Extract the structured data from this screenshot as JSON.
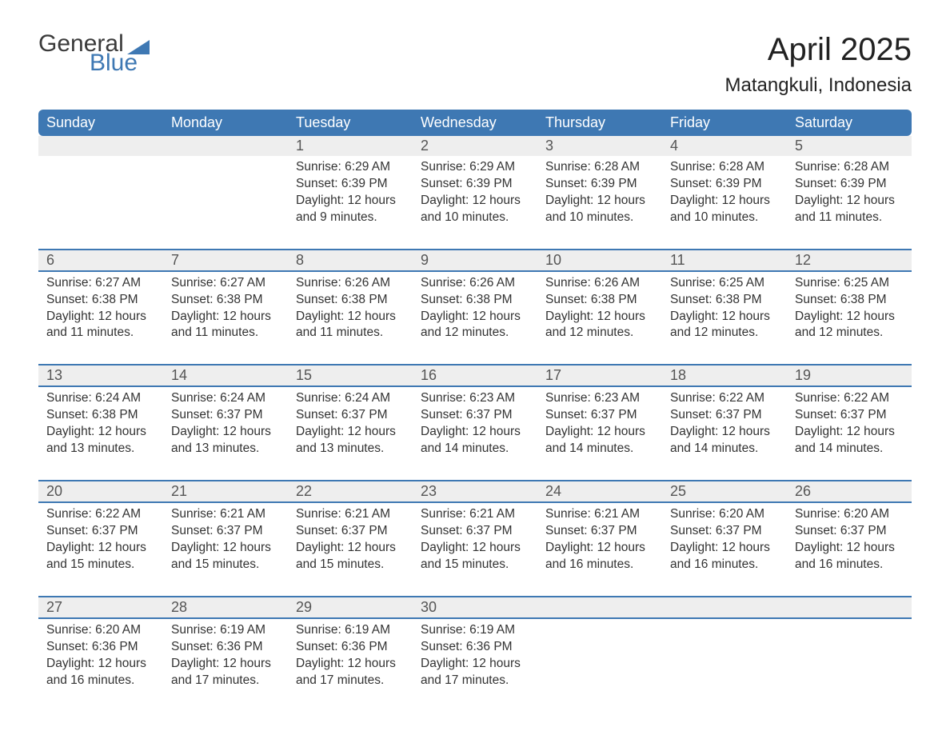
{
  "logo": {
    "word1": "General",
    "word2": "Blue",
    "brand_color": "#3e78b3",
    "text_color": "#3a3a3a"
  },
  "header": {
    "month_title": "April 2025",
    "location": "Matangkuli, Indonesia"
  },
  "colors": {
    "header_bg": "#3e78b3",
    "header_text": "#ffffff",
    "daynum_bg": "#eeeeee",
    "week_divider": "#3e78b3",
    "page_bg": "#ffffff",
    "body_text": "#333333"
  },
  "typography": {
    "month_title_fontsize": 40,
    "location_fontsize": 24,
    "weekday_fontsize": 18,
    "daynum_fontsize": 18,
    "detail_fontsize": 15.5,
    "font_family": "Segoe UI"
  },
  "calendar": {
    "type": "table",
    "columns": [
      "Sunday",
      "Monday",
      "Tuesday",
      "Wednesday",
      "Thursday",
      "Friday",
      "Saturday"
    ],
    "weeks": [
      [
        null,
        null,
        {
          "day": "1",
          "sunrise": "Sunrise: 6:29 AM",
          "sunset": "Sunset: 6:39 PM",
          "daylight1": "Daylight: 12 hours",
          "daylight2": "and 9 minutes."
        },
        {
          "day": "2",
          "sunrise": "Sunrise: 6:29 AM",
          "sunset": "Sunset: 6:39 PM",
          "daylight1": "Daylight: 12 hours",
          "daylight2": "and 10 minutes."
        },
        {
          "day": "3",
          "sunrise": "Sunrise: 6:28 AM",
          "sunset": "Sunset: 6:39 PM",
          "daylight1": "Daylight: 12 hours",
          "daylight2": "and 10 minutes."
        },
        {
          "day": "4",
          "sunrise": "Sunrise: 6:28 AM",
          "sunset": "Sunset: 6:39 PM",
          "daylight1": "Daylight: 12 hours",
          "daylight2": "and 10 minutes."
        },
        {
          "day": "5",
          "sunrise": "Sunrise: 6:28 AM",
          "sunset": "Sunset: 6:39 PM",
          "daylight1": "Daylight: 12 hours",
          "daylight2": "and 11 minutes."
        }
      ],
      [
        {
          "day": "6",
          "sunrise": "Sunrise: 6:27 AM",
          "sunset": "Sunset: 6:38 PM",
          "daylight1": "Daylight: 12 hours",
          "daylight2": "and 11 minutes."
        },
        {
          "day": "7",
          "sunrise": "Sunrise: 6:27 AM",
          "sunset": "Sunset: 6:38 PM",
          "daylight1": "Daylight: 12 hours",
          "daylight2": "and 11 minutes."
        },
        {
          "day": "8",
          "sunrise": "Sunrise: 6:26 AM",
          "sunset": "Sunset: 6:38 PM",
          "daylight1": "Daylight: 12 hours",
          "daylight2": "and 11 minutes."
        },
        {
          "day": "9",
          "sunrise": "Sunrise: 6:26 AM",
          "sunset": "Sunset: 6:38 PM",
          "daylight1": "Daylight: 12 hours",
          "daylight2": "and 12 minutes."
        },
        {
          "day": "10",
          "sunrise": "Sunrise: 6:26 AM",
          "sunset": "Sunset: 6:38 PM",
          "daylight1": "Daylight: 12 hours",
          "daylight2": "and 12 minutes."
        },
        {
          "day": "11",
          "sunrise": "Sunrise: 6:25 AM",
          "sunset": "Sunset: 6:38 PM",
          "daylight1": "Daylight: 12 hours",
          "daylight2": "and 12 minutes."
        },
        {
          "day": "12",
          "sunrise": "Sunrise: 6:25 AM",
          "sunset": "Sunset: 6:38 PM",
          "daylight1": "Daylight: 12 hours",
          "daylight2": "and 12 minutes."
        }
      ],
      [
        {
          "day": "13",
          "sunrise": "Sunrise: 6:24 AM",
          "sunset": "Sunset: 6:38 PM",
          "daylight1": "Daylight: 12 hours",
          "daylight2": "and 13 minutes."
        },
        {
          "day": "14",
          "sunrise": "Sunrise: 6:24 AM",
          "sunset": "Sunset: 6:37 PM",
          "daylight1": "Daylight: 12 hours",
          "daylight2": "and 13 minutes."
        },
        {
          "day": "15",
          "sunrise": "Sunrise: 6:24 AM",
          "sunset": "Sunset: 6:37 PM",
          "daylight1": "Daylight: 12 hours",
          "daylight2": "and 13 minutes."
        },
        {
          "day": "16",
          "sunrise": "Sunrise: 6:23 AM",
          "sunset": "Sunset: 6:37 PM",
          "daylight1": "Daylight: 12 hours",
          "daylight2": "and 14 minutes."
        },
        {
          "day": "17",
          "sunrise": "Sunrise: 6:23 AM",
          "sunset": "Sunset: 6:37 PM",
          "daylight1": "Daylight: 12 hours",
          "daylight2": "and 14 minutes."
        },
        {
          "day": "18",
          "sunrise": "Sunrise: 6:22 AM",
          "sunset": "Sunset: 6:37 PM",
          "daylight1": "Daylight: 12 hours",
          "daylight2": "and 14 minutes."
        },
        {
          "day": "19",
          "sunrise": "Sunrise: 6:22 AM",
          "sunset": "Sunset: 6:37 PM",
          "daylight1": "Daylight: 12 hours",
          "daylight2": "and 14 minutes."
        }
      ],
      [
        {
          "day": "20",
          "sunrise": "Sunrise: 6:22 AM",
          "sunset": "Sunset: 6:37 PM",
          "daylight1": "Daylight: 12 hours",
          "daylight2": "and 15 minutes."
        },
        {
          "day": "21",
          "sunrise": "Sunrise: 6:21 AM",
          "sunset": "Sunset: 6:37 PM",
          "daylight1": "Daylight: 12 hours",
          "daylight2": "and 15 minutes."
        },
        {
          "day": "22",
          "sunrise": "Sunrise: 6:21 AM",
          "sunset": "Sunset: 6:37 PM",
          "daylight1": "Daylight: 12 hours",
          "daylight2": "and 15 minutes."
        },
        {
          "day": "23",
          "sunrise": "Sunrise: 6:21 AM",
          "sunset": "Sunset: 6:37 PM",
          "daylight1": "Daylight: 12 hours",
          "daylight2": "and 15 minutes."
        },
        {
          "day": "24",
          "sunrise": "Sunrise: 6:21 AM",
          "sunset": "Sunset: 6:37 PM",
          "daylight1": "Daylight: 12 hours",
          "daylight2": "and 16 minutes."
        },
        {
          "day": "25",
          "sunrise": "Sunrise: 6:20 AM",
          "sunset": "Sunset: 6:37 PM",
          "daylight1": "Daylight: 12 hours",
          "daylight2": "and 16 minutes."
        },
        {
          "day": "26",
          "sunrise": "Sunrise: 6:20 AM",
          "sunset": "Sunset: 6:37 PM",
          "daylight1": "Daylight: 12 hours",
          "daylight2": "and 16 minutes."
        }
      ],
      [
        {
          "day": "27",
          "sunrise": "Sunrise: 6:20 AM",
          "sunset": "Sunset: 6:36 PM",
          "daylight1": "Daylight: 12 hours",
          "daylight2": "and 16 minutes."
        },
        {
          "day": "28",
          "sunrise": "Sunrise: 6:19 AM",
          "sunset": "Sunset: 6:36 PM",
          "daylight1": "Daylight: 12 hours",
          "daylight2": "and 17 minutes."
        },
        {
          "day": "29",
          "sunrise": "Sunrise: 6:19 AM",
          "sunset": "Sunset: 6:36 PM",
          "daylight1": "Daylight: 12 hours",
          "daylight2": "and 17 minutes."
        },
        {
          "day": "30",
          "sunrise": "Sunrise: 6:19 AM",
          "sunset": "Sunset: 6:36 PM",
          "daylight1": "Daylight: 12 hours",
          "daylight2": "and 17 minutes."
        },
        null,
        null,
        null
      ]
    ]
  }
}
